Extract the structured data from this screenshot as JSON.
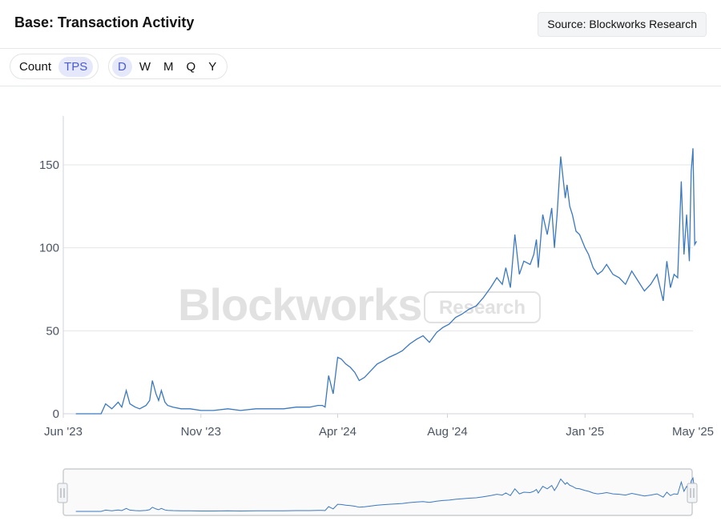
{
  "header": {
    "title": "Base: Transaction Activity",
    "source_label": "Source: Blockworks Research"
  },
  "toolbar": {
    "metric_options": [
      "Count",
      "TPS"
    ],
    "metric_selected": "TPS",
    "interval_options": [
      "D",
      "W",
      "M",
      "Q",
      "Y"
    ],
    "interval_selected": "D"
  },
  "watermark": {
    "main": "Blockworks",
    "badge": "Research"
  },
  "colors": {
    "line": "#3a78c0",
    "accent_bg": "#e5e8fb",
    "accent_text": "#4b5bd1",
    "grid": "#e3e5e8"
  },
  "chart_data": {
    "type": "line",
    "title": "",
    "xlabel": "",
    "ylabel": "",
    "ylim": [
      0,
      180
    ],
    "y_ticks": [
      "0",
      "50",
      "100",
      "150"
    ],
    "x_ticks": [
      "Jun '23",
      "Nov '23",
      "Apr '24",
      "Aug '24",
      "Jan '25",
      "May '25"
    ],
    "grid": "horizontal",
    "legend": "none",
    "series": [
      {
        "values_note_free": true,
        "x": [
          "2023-06-15",
          "2023-07-13",
          "2023-07-18",
          "2023-07-25",
          "2023-08-01",
          "2023-08-05",
          "2023-08-10",
          "2023-08-14",
          "2023-08-20",
          "2023-08-25",
          "2023-09-01",
          "2023-09-05",
          "2023-09-08",
          "2023-09-12",
          "2023-09-15",
          "2023-09-18",
          "2023-09-22",
          "2023-09-25",
          "2023-10-01",
          "2023-10-10",
          "2023-10-20",
          "2023-11-01",
          "2023-11-15",
          "2023-12-01",
          "2023-12-15",
          "2024-01-01",
          "2024-01-15",
          "2024-02-01",
          "2024-02-15",
          "2024-03-01",
          "2024-03-10",
          "2024-03-15",
          "2024-03-18",
          "2024-03-22",
          "2024-03-27",
          "2024-04-01",
          "2024-04-05",
          "2024-04-10",
          "2024-04-15",
          "2024-04-20",
          "2024-04-25",
          "2024-05-01",
          "2024-05-08",
          "2024-05-15",
          "2024-05-22",
          "2024-05-28",
          "2024-06-05",
          "2024-06-12",
          "2024-06-20",
          "2024-06-28",
          "2024-07-05",
          "2024-07-12",
          "2024-07-20",
          "2024-07-27",
          "2024-08-03",
          "2024-08-10",
          "2024-08-17",
          "2024-08-25",
          "2024-09-02",
          "2024-09-10",
          "2024-09-18",
          "2024-09-25",
          "2024-10-01",
          "2024-10-05",
          "2024-10-10",
          "2024-10-15",
          "2024-10-20",
          "2024-10-25",
          "2024-11-01",
          "2024-11-05",
          "2024-11-08",
          "2024-11-10",
          "2024-11-15",
          "2024-11-20",
          "2024-11-25",
          "2024-11-28",
          "2024-12-01",
          "2024-12-05",
          "2024-12-10",
          "2024-12-12",
          "2024-12-15",
          "2024-12-18",
          "2024-12-22",
          "2024-12-26",
          "2025-01-01",
          "2025-01-05",
          "2025-01-10",
          "2025-01-15",
          "2025-01-20",
          "2025-01-25",
          "2025-02-01",
          "2025-02-08",
          "2025-02-15",
          "2025-02-22",
          "2025-03-01",
          "2025-03-08",
          "2025-03-15",
          "2025-03-22",
          "2025-03-29",
          "2025-04-02",
          "2025-04-06",
          "2025-04-10",
          "2025-04-14",
          "2025-04-18",
          "2025-04-21",
          "2025-04-24",
          "2025-04-27",
          "2025-04-29",
          "2025-05-01",
          "2025-05-03",
          "2025-05-05"
        ],
        "y": [
          0,
          0,
          6,
          3,
          7,
          4,
          14,
          6,
          4,
          3,
          5,
          8,
          20,
          12,
          8,
          14,
          7,
          5,
          4,
          3,
          3,
          2,
          2,
          3,
          2,
          3,
          3,
          3,
          4,
          4,
          5,
          5,
          4,
          23,
          12,
          34,
          33,
          30,
          28,
          25,
          20,
          22,
          26,
          30,
          32,
          34,
          36,
          38,
          42,
          45,
          47,
          43,
          49,
          52,
          54,
          58,
          60,
          63,
          65,
          70,
          76,
          82,
          78,
          88,
          76,
          108,
          84,
          92,
          90,
          96,
          105,
          88,
          120,
          108,
          124,
          100,
          120,
          155,
          130,
          138,
          125,
          120,
          110,
          108,
          100,
          96,
          88,
          84,
          86,
          90,
          84,
          82,
          78,
          86,
          80,
          74,
          78,
          84,
          68,
          92,
          76,
          84,
          82,
          140,
          96,
          120,
          92,
          146,
          160,
          102,
          104
        ]
      }
    ]
  }
}
